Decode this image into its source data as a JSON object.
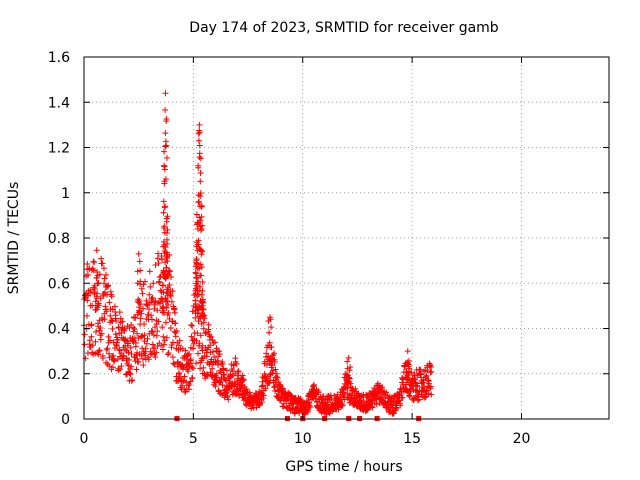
{
  "chart_data": {
    "type": "scatter",
    "title": "Day 174 of 2023, SRMTID for receiver gamb",
    "xlabel": "GPS time / hours",
    "ylabel": "SRMTID / TECUs",
    "xlim": [
      0,
      24
    ],
    "ylim": [
      0,
      1.6
    ],
    "xticks": [
      0,
      5,
      10,
      15,
      20
    ],
    "xtick_labels": [
      "0",
      "5",
      "10",
      "15",
      "20"
    ],
    "yticks": [
      0,
      0.2,
      0.4,
      0.6,
      0.8,
      1,
      1.2,
      1.4,
      1.6
    ],
    "ytick_labels": [
      "0",
      "0.2",
      "0.4",
      "0.6",
      "0.8",
      "1",
      "1.2",
      "1.4",
      "1.6"
    ],
    "grid": true,
    "marker": "plus",
    "color": "#ff0000",
    "envelope": {
      "description": "approximate mean SRMTID level versus time, points scattered around it",
      "x": [
        0.0,
        0.3,
        0.6,
        0.9,
        1.2,
        1.5,
        1.8,
        2.1,
        2.4,
        2.7,
        3.0,
        3.3,
        3.6,
        3.9,
        4.2,
        4.5,
        4.8,
        5.1,
        5.4,
        5.7,
        6.0,
        6.3,
        6.6,
        6.9,
        7.2,
        7.5,
        7.8,
        8.1,
        8.4,
        8.7,
        9.0,
        9.3,
        9.6,
        9.9,
        10.2,
        10.5,
        10.8,
        11.1,
        11.4,
        11.7,
        12.0,
        12.3,
        12.6,
        12.9,
        13.2,
        13.5,
        13.8,
        14.1,
        14.4,
        14.7,
        15.0,
        15.3,
        15.6,
        15.9
      ],
      "y": [
        0.45,
        0.5,
        0.52,
        0.48,
        0.4,
        0.35,
        0.3,
        0.28,
        0.35,
        0.42,
        0.45,
        0.5,
        0.55,
        0.5,
        0.3,
        0.22,
        0.2,
        0.45,
        0.35,
        0.3,
        0.25,
        0.18,
        0.15,
        0.2,
        0.15,
        0.08,
        0.07,
        0.1,
        0.25,
        0.2,
        0.1,
        0.08,
        0.06,
        0.05,
        0.06,
        0.12,
        0.07,
        0.06,
        0.07,
        0.08,
        0.15,
        0.1,
        0.08,
        0.07,
        0.09,
        0.12,
        0.08,
        0.06,
        0.08,
        0.18,
        0.15,
        0.15,
        0.16,
        0.18
      ]
    },
    "spikes": [
      {
        "x_start": 3.6,
        "x_end": 3.85,
        "peak": 1.44
      },
      {
        "x_start": 5.1,
        "x_end": 5.45,
        "peak": 1.3
      }
    ],
    "extra_peaks": [
      {
        "x": 2.5,
        "y": 0.73
      },
      {
        "x": 8.5,
        "y": 0.45
      },
      {
        "x": 12.1,
        "y": 0.27
      },
      {
        "x": 14.8,
        "y": 0.3
      },
      {
        "x": 0.6,
        "y": 0.65
      }
    ],
    "zero_markers_x": [
      4.25,
      9.3,
      10.0,
      11.0,
      12.1,
      12.6,
      13.4,
      15.3
    ],
    "coverage": {
      "x_start": 0.0,
      "x_end": 15.9
    }
  }
}
